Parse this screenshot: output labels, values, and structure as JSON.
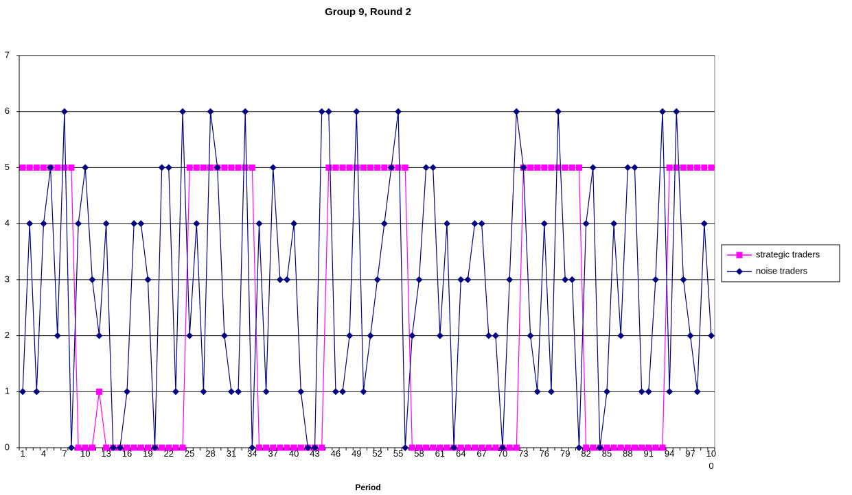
{
  "chart_data": {
    "type": "line",
    "title": "Group 9, Round 2",
    "x_label": "Period",
    "categories": [
      "1",
      null,
      null,
      "4",
      null,
      null,
      "7",
      null,
      null,
      "10",
      null,
      null,
      "13",
      null,
      null,
      "16",
      null,
      null,
      "19",
      null,
      null,
      "22",
      null,
      null,
      "25",
      null,
      null,
      "28",
      null,
      null,
      "31",
      null,
      null,
      "34",
      null,
      null,
      "37",
      null,
      null,
      "40",
      null,
      null,
      "43",
      null,
      null,
      "46",
      null,
      null,
      "49",
      null,
      null,
      "52",
      null,
      null,
      "55",
      null,
      null,
      "58",
      null,
      null,
      "61",
      null,
      null,
      "64",
      null,
      null,
      "67",
      null,
      null,
      "70",
      null,
      null,
      "73",
      null,
      null,
      "76",
      null,
      null,
      "79",
      null,
      null,
      "82",
      null,
      null,
      "85",
      null,
      null,
      "88",
      null,
      null,
      "91",
      null,
      null,
      "94",
      null,
      null,
      "97",
      null,
      null,
      "100"
    ],
    "series": [
      {
        "name": "strategic traders",
        "color": "#ff00ff",
        "marker": "square",
        "values": [
          5,
          5,
          5,
          5,
          5,
          5,
          5,
          5,
          0,
          0,
          0,
          1,
          0,
          0,
          0,
          0,
          0,
          0,
          0,
          0,
          0,
          0,
          0,
          0,
          5,
          5,
          5,
          5,
          5,
          5,
          5,
          5,
          5,
          5,
          0,
          0,
          0,
          0,
          0,
          0,
          0,
          0,
          0,
          0,
          5,
          5,
          5,
          5,
          5,
          5,
          5,
          5,
          5,
          5,
          5,
          5,
          0,
          0,
          0,
          0,
          0,
          0,
          0,
          0,
          0,
          0,
          0,
          0,
          0,
          0,
          0,
          0,
          5,
          5,
          5,
          5,
          5,
          5,
          5,
          5,
          5,
          0,
          0,
          0,
          0,
          0,
          0,
          0,
          0,
          0,
          0,
          0,
          0,
          5,
          5,
          5,
          5,
          5,
          5,
          5
        ]
      },
      {
        "name": "noise traders",
        "color": "#000080",
        "marker": "diamond",
        "values": [
          1,
          4,
          1,
          4,
          5,
          2,
          6,
          0,
          4,
          5,
          3,
          2,
          4,
          0,
          0,
          1,
          4,
          4,
          3,
          0,
          5,
          5,
          1,
          6,
          2,
          4,
          1,
          6,
          5,
          2,
          1,
          1,
          6,
          0,
          4,
          1,
          5,
          3,
          3,
          4,
          1,
          0,
          0,
          6,
          6,
          1,
          1,
          2,
          6,
          1,
          2,
          3,
          4,
          5,
          6,
          0,
          2,
          3,
          5,
          5,
          2,
          4,
          0,
          3,
          3,
          4,
          4,
          2,
          2,
          0,
          3,
          6,
          5,
          2,
          1,
          4,
          1,
          6,
          3,
          3,
          0,
          4,
          5,
          0,
          1,
          4,
          2,
          5,
          5,
          1,
          1,
          3,
          6,
          1,
          6,
          3,
          2,
          1,
          4,
          2
        ]
      }
    ],
    "ylim": [
      0,
      7
    ],
    "yticks": [
      0,
      1,
      2,
      3,
      4,
      5,
      6,
      7
    ],
    "grid": true,
    "legend": "right"
  }
}
